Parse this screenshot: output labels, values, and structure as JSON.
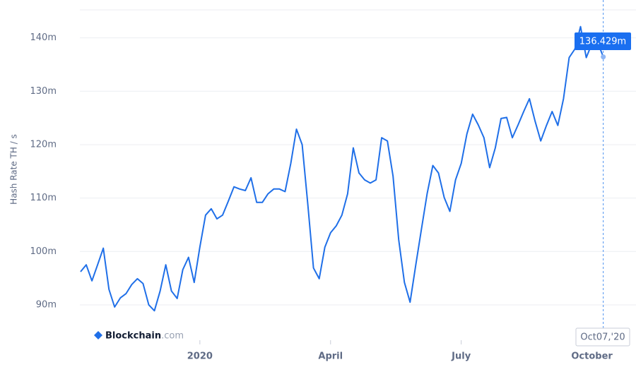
{
  "chart_data": {
    "type": "line",
    "y_axis_label": "Hash Rate TH / s",
    "color": "#1f6fe8",
    "grid": true,
    "ylim": [
      85.5,
      145.5
    ],
    "yticks": [
      {
        "value": 90,
        "label": "90m"
      },
      {
        "value": 100,
        "label": "100m"
      },
      {
        "value": 110,
        "label": "110m"
      },
      {
        "value": 120,
        "label": "120m"
      },
      {
        "value": 130,
        "label": "130m"
      },
      {
        "value": 140,
        "label": "140m"
      }
    ],
    "categories": [
      null,
      null,
      null,
      null,
      null,
      null,
      null,
      null,
      null,
      null,
      null,
      null,
      null,
      null,
      null,
      null,
      null,
      null,
      null,
      null,
      null,
      "2020",
      null,
      null,
      null,
      null,
      null,
      null,
      null,
      null,
      null,
      null,
      null,
      null,
      null,
      null,
      null,
      null,
      null,
      null,
      null,
      null,
      null,
      null,
      "April",
      null,
      null,
      null,
      null,
      null,
      null,
      null,
      null,
      null,
      null,
      null,
      null,
      null,
      null,
      null,
      null,
      null,
      null,
      null,
      null,
      null,
      null,
      "July",
      null,
      null,
      null,
      null,
      null,
      null,
      null,
      null,
      null,
      null,
      null,
      null,
      null,
      null,
      null,
      null,
      null,
      null,
      null,
      null,
      null,
      null,
      "October",
      null,
      null
    ],
    "values": [
      96.2,
      97.5,
      94.5,
      97.5,
      100.6,
      92.9,
      89.6,
      91.3,
      92.1,
      93.8,
      94.9,
      94.0,
      90.0,
      88.9,
      92.6,
      97.5,
      92.6,
      91.2,
      96.6,
      98.9,
      94.2,
      100.8,
      106.8,
      108.0,
      106.1,
      106.8,
      109.4,
      112.1,
      111.7,
      111.4,
      113.8,
      109.2,
      109.2,
      110.8,
      111.7,
      111.7,
      111.2,
      116.5,
      122.9,
      120.0,
      108.8,
      96.9,
      94.9,
      100.8,
      103.5,
      104.8,
      106.8,
      110.8,
      119.4,
      114.7,
      113.4,
      112.8,
      113.4,
      121.3,
      120.7,
      114.1,
      102.2,
      94.2,
      90.5,
      97.5,
      104.2,
      110.8,
      116.1,
      114.7,
      110.1,
      107.5,
      113.4,
      116.5,
      122.0,
      125.7,
      123.7,
      121.3,
      115.7,
      119.4,
      124.9,
      125.1,
      121.3,
      123.7,
      126.2,
      128.6,
      124.4,
      120.7,
      123.6,
      126.2,
      123.6,
      128.6,
      136.3,
      137.9,
      142.1,
      136.3,
      138.9,
      139.2,
      136.429
    ],
    "tooltip": {
      "value_label": "136.429m",
      "x_label": "Oct07,'20"
    },
    "watermark": {
      "name": "Blockchain",
      "suffix": ".com"
    }
  }
}
